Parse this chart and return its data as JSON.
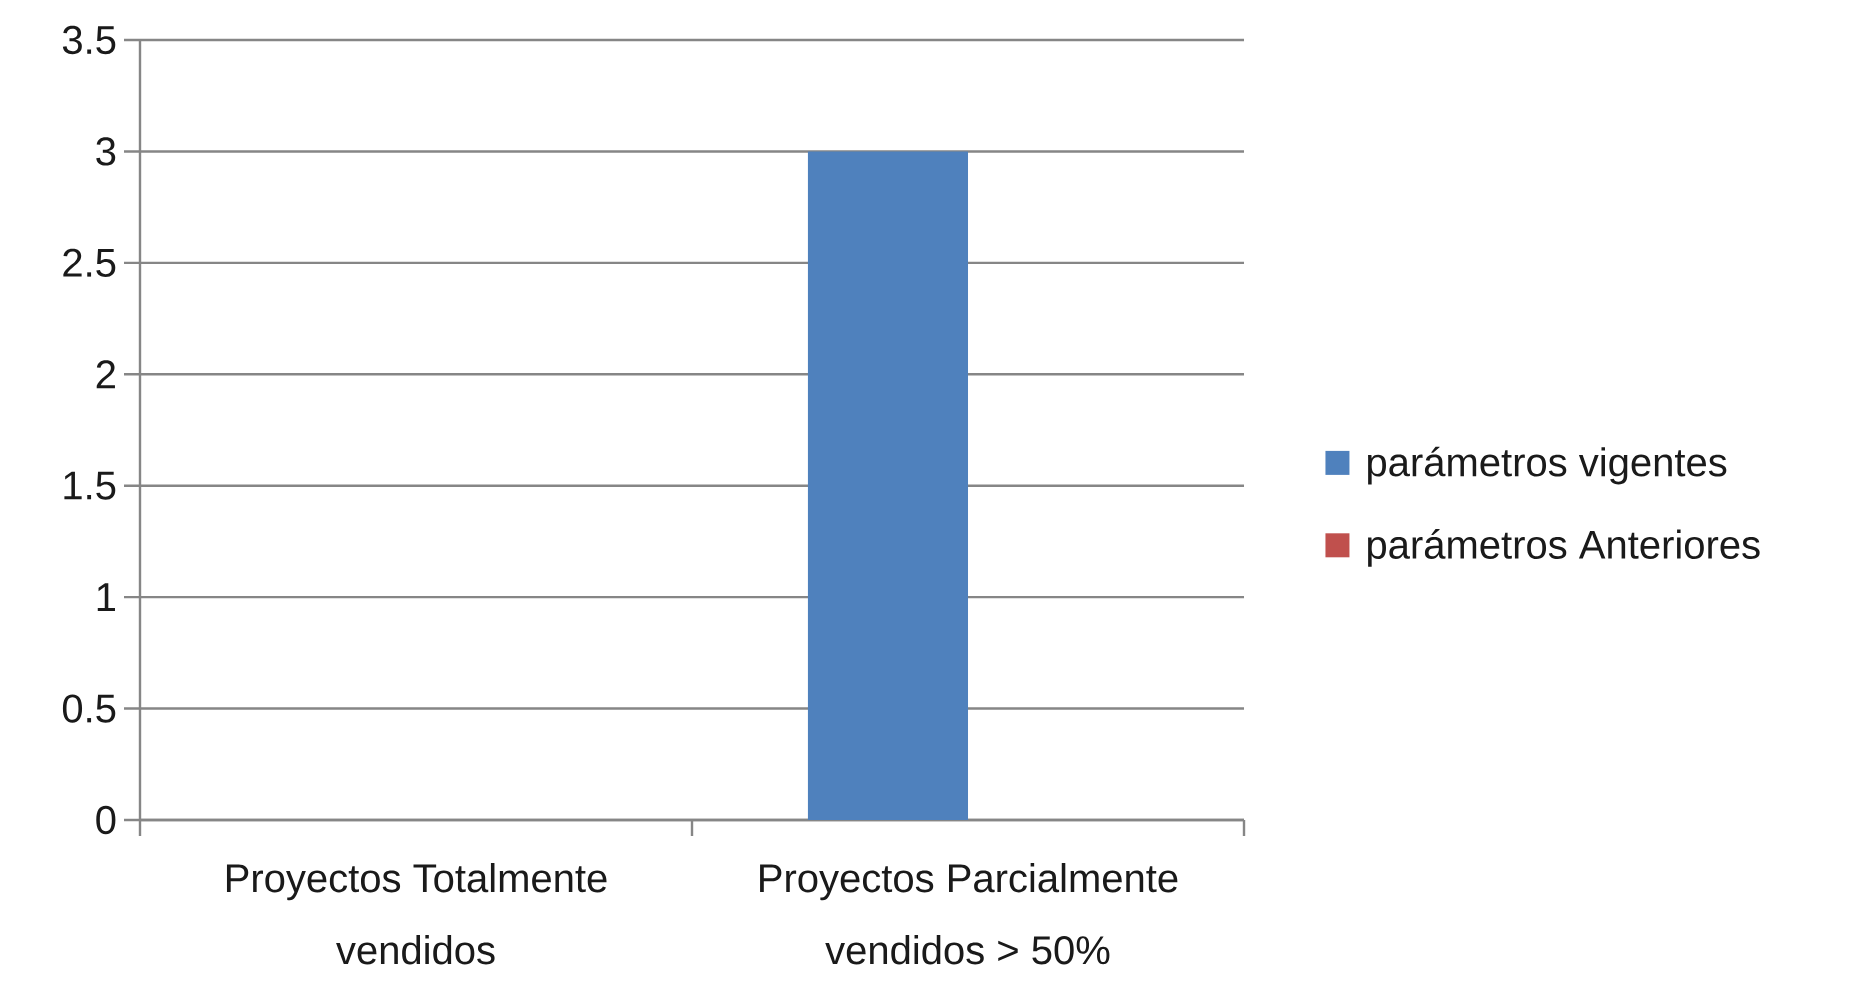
{
  "chart_data": {
    "type": "bar",
    "categories": [
      "Proyectos Totalmente vendidos",
      "Proyectos Parcialmente vendidos > 50%"
    ],
    "series": [
      {
        "name": "parámetros vigentes",
        "color": "#4f81bd",
        "values": [
          0,
          3
        ]
      },
      {
        "name": "parámetros Anteriores",
        "color": "#c0504d",
        "values": [
          0,
          0
        ]
      }
    ],
    "ylim": [
      0,
      3.5
    ],
    "yticks": [
      0,
      0.5,
      1,
      1.5,
      2,
      2.5,
      3,
      3.5
    ],
    "grid": "y",
    "legend": "right"
  }
}
